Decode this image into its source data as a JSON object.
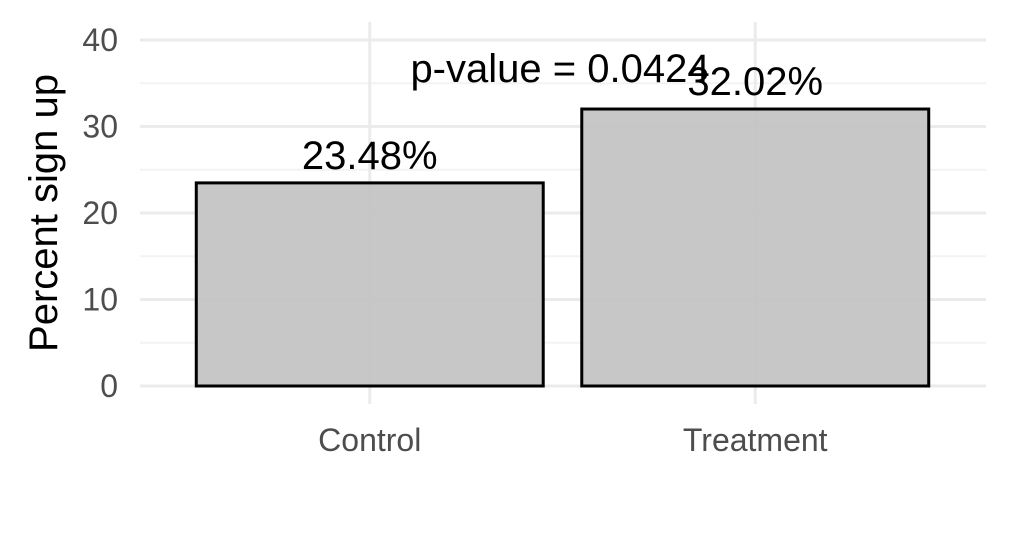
{
  "chart_data": {
    "type": "bar",
    "categories": [
      "Control",
      "Treatment"
    ],
    "values": [
      23.48,
      32.02
    ],
    "data_labels": [
      "23.48%",
      "32.02%"
    ],
    "annotation": "p-value = 0.0424",
    "xlabel": "",
    "ylabel": "Percent sign up",
    "ylim": [
      0,
      40
    ],
    "yticks": [
      0,
      10,
      20,
      30,
      40
    ],
    "ytick_labels": [
      "0",
      "10",
      "20",
      "30",
      "40"
    ],
    "grid": true,
    "legend": "none",
    "colors": {
      "bar_fill": "#c4c4c4",
      "bar_stroke": "#000000",
      "grid_major": "#ebebeb",
      "grid_minor": "#f3f3f3",
      "tick_text": "#4d4d4d",
      "label_text": "#000000"
    }
  }
}
